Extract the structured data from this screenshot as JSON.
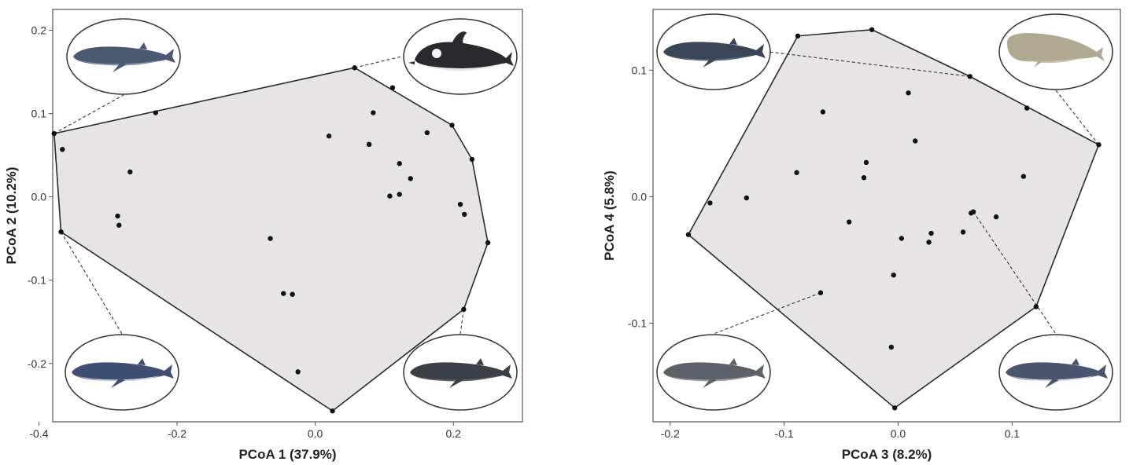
{
  "chart_data": [
    {
      "type": "scatter",
      "xlabel": "PCoA 1 (37.9%)",
      "ylabel": "PCoA 2 (10.2%)",
      "xlim": [
        -0.38,
        0.3
      ],
      "ylim": [
        -0.27,
        0.225
      ],
      "xticks": [
        {
          "value": -0.4,
          "label": "-0.4"
        },
        {
          "value": -0.2,
          "label": "-0.2"
        },
        {
          "value": 0.0,
          "label": "0.0"
        },
        {
          "value": 0.2,
          "label": "0.2"
        }
      ],
      "yticks": [
        {
          "value": 0.2,
          "label": "0.2"
        },
        {
          "value": 0.1,
          "label": "0.1"
        },
        {
          "value": 0.0,
          "label": "0.0"
        },
        {
          "value": -0.1,
          "label": "-0.1"
        },
        {
          "value": -0.2,
          "label": "-0.2"
        }
      ],
      "grid": false,
      "hull": [
        [
          -0.378,
          0.076
        ],
        [
          0.057,
          0.155
        ],
        [
          0.198,
          0.086
        ],
        [
          0.227,
          0.045
        ],
        [
          0.25,
          -0.055
        ],
        [
          0.215,
          -0.135
        ],
        [
          0.025,
          -0.257
        ],
        [
          -0.368,
          -0.042
        ]
      ],
      "points": [
        [
          -0.378,
          0.076
        ],
        [
          0.057,
          0.155
        ],
        [
          0.112,
          0.131
        ],
        [
          0.198,
          0.086
        ],
        [
          0.227,
          0.045
        ],
        [
          0.25,
          -0.055
        ],
        [
          0.215,
          -0.135
        ],
        [
          0.025,
          -0.257
        ],
        [
          -0.368,
          -0.042
        ],
        [
          -0.231,
          0.101
        ],
        [
          -0.366,
          0.057
        ],
        [
          -0.268,
          0.03
        ],
        [
          -0.286,
          -0.023
        ],
        [
          -0.284,
          -0.034
        ],
        [
          0.084,
          0.101
        ],
        [
          0.162,
          0.077
        ],
        [
          0.02,
          0.073
        ],
        [
          0.078,
          0.063
        ],
        [
          0.122,
          0.04
        ],
        [
          0.138,
          0.022
        ],
        [
          0.108,
          0.001
        ],
        [
          0.122,
          0.003
        ],
        [
          0.21,
          -0.009
        ],
        [
          0.216,
          -0.021
        ],
        [
          -0.065,
          -0.05
        ],
        [
          -0.046,
          -0.116
        ],
        [
          -0.033,
          -0.117
        ],
        [
          -0.025,
          -0.21
        ]
      ],
      "insets": [
        {
          "icon": "rorqual-whale-icon",
          "position": "top-left",
          "anchor": [
            -0.378,
            0.076
          ],
          "body": "#4a5872",
          "belly": "#8a95a8"
        },
        {
          "icon": "dolphin-icon",
          "position": "top-right",
          "anchor": [
            0.057,
            0.155
          ],
          "body": "#2a2a2e",
          "belly": "#e8e8ea"
        },
        {
          "icon": "minke-whale-icon",
          "position": "bottom-left",
          "anchor": [
            -0.368,
            -0.042
          ],
          "body": "#3f4f74",
          "belly": "#c8cfdc"
        },
        {
          "icon": "beaked-whale-icon",
          "position": "bottom-right",
          "anchor": [
            0.215,
            -0.135
          ],
          "body": "#3b4048",
          "belly": "#5a6068"
        }
      ]
    },
    {
      "type": "scatter",
      "xlabel": "PCoA 3 (8.2%)",
      "ylabel": "PCoA 4 (5.8%)",
      "xlim": [
        -0.215,
        0.195
      ],
      "ylim": [
        -0.178,
        0.148
      ],
      "xticks": [
        {
          "value": -0.2,
          "label": "-0.2"
        },
        {
          "value": -0.1,
          "label": "-0.1"
        },
        {
          "value": 0.0,
          "label": "0.0"
        },
        {
          "value": 0.1,
          "label": "0.1"
        }
      ],
      "yticks": [
        {
          "value": 0.1,
          "label": "0.1"
        },
        {
          "value": 0.0,
          "label": "0.0"
        },
        {
          "value": -0.1,
          "label": "-0.1"
        }
      ],
      "grid": false,
      "hull": [
        [
          -0.088,
          0.127
        ],
        [
          -0.023,
          0.132
        ],
        [
          0.063,
          0.095
        ],
        [
          0.176,
          0.041
        ],
        [
          0.121,
          -0.087
        ],
        [
          -0.003,
          -0.167
        ],
        [
          -0.184,
          -0.03
        ]
      ],
      "points": [
        [
          -0.088,
          0.127
        ],
        [
          -0.023,
          0.132
        ],
        [
          0.063,
          0.095
        ],
        [
          0.113,
          0.07
        ],
        [
          0.176,
          0.041
        ],
        [
          0.121,
          -0.087
        ],
        [
          -0.003,
          -0.167
        ],
        [
          -0.184,
          -0.03
        ],
        [
          -0.165,
          -0.005
        ],
        [
          -0.133,
          -0.001
        ],
        [
          -0.066,
          0.067
        ],
        [
          -0.089,
          0.019
        ],
        [
          -0.028,
          0.027
        ],
        [
          -0.03,
          0.015
        ],
        [
          0.009,
          0.082
        ],
        [
          0.015,
          0.044
        ],
        [
          0.11,
          0.016
        ],
        [
          -0.043,
          -0.02
        ],
        [
          0.064,
          -0.013
        ],
        [
          0.066,
          -0.012
        ],
        [
          0.086,
          -0.016
        ],
        [
          0.029,
          -0.029
        ],
        [
          0.057,
          -0.028
        ],
        [
          0.027,
          -0.036
        ],
        [
          0.003,
          -0.033
        ],
        [
          -0.004,
          -0.062
        ],
        [
          -0.068,
          -0.076
        ],
        [
          -0.006,
          -0.119
        ]
      ],
      "insets": [
        {
          "icon": "right-whale-icon",
          "position": "top-left",
          "anchor": [
            0.063,
            0.095
          ],
          "body": "#3a4658",
          "belly": "#5a6478"
        },
        {
          "icon": "sperm-whale-icon",
          "position": "top-right",
          "anchor": [
            0.176,
            0.041
          ],
          "body": "#b0a890",
          "belly": "#ccc4ac"
        },
        {
          "icon": "gray-whale-icon",
          "position": "bottom-left",
          "anchor": [
            -0.068,
            -0.076
          ],
          "body": "#5c6068",
          "belly": "#9a9ea6"
        },
        {
          "icon": "fin-whale-icon",
          "position": "bottom-right",
          "anchor": [
            0.066,
            -0.012
          ],
          "body": "#4a5670",
          "belly": "#d8dce4"
        }
      ]
    }
  ]
}
